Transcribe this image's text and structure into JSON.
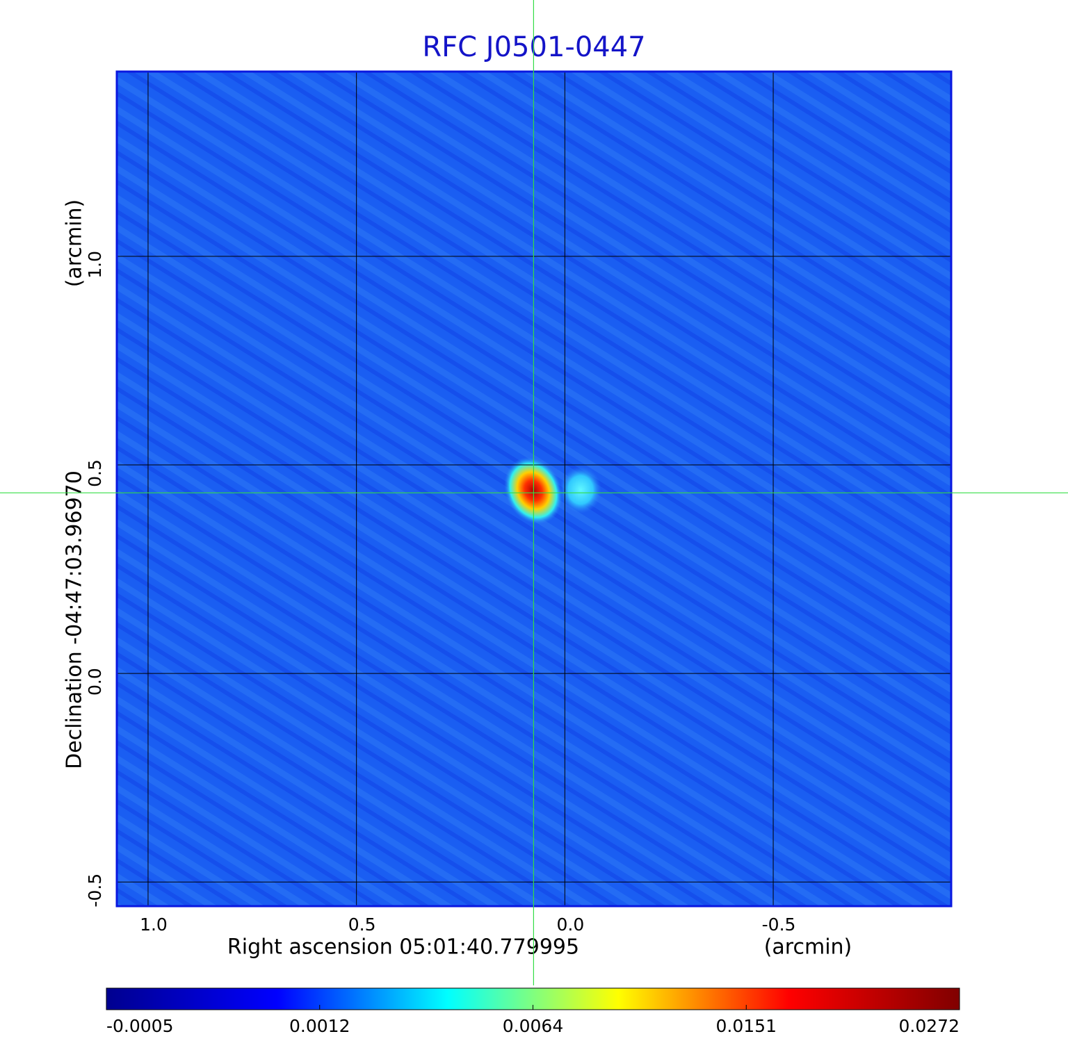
{
  "chart_data": {
    "type": "image",
    "title": "RFC J0501-0447",
    "x_label": "Right ascension  05:01:40.779995",
    "x_unit": "(arcmin)",
    "y_label": "Declination  -04:47:03.96970",
    "y_unit": "(arcmin)",
    "xlim": [
      1.075,
      -0.927
    ],
    "ylim": [
      -0.558,
      1.443
    ],
    "xticks": [
      {
        "value": 1,
        "label": "1.0"
      },
      0.5,
      {
        "value": 0,
        "label": "0.0"
      },
      -0.5
    ],
    "yticks": [
      -0.5,
      {
        "value": 0,
        "label": "0.0"
      },
      0.5,
      {
        "value": 1,
        "label": "1.0"
      }
    ],
    "grid": true,
    "crosshair": {
      "x": 0.075,
      "y": 0.433,
      "color": "#33dd44"
    },
    "colorbar": {
      "ticks": [
        -0.0005,
        0.0012,
        0.0064,
        0.0151,
        0.0272
      ],
      "colors": [
        "#00008f",
        "#0000ff",
        "#00ffff",
        "#ffff00",
        "#ff0000",
        "#800000"
      ]
    }
  }
}
